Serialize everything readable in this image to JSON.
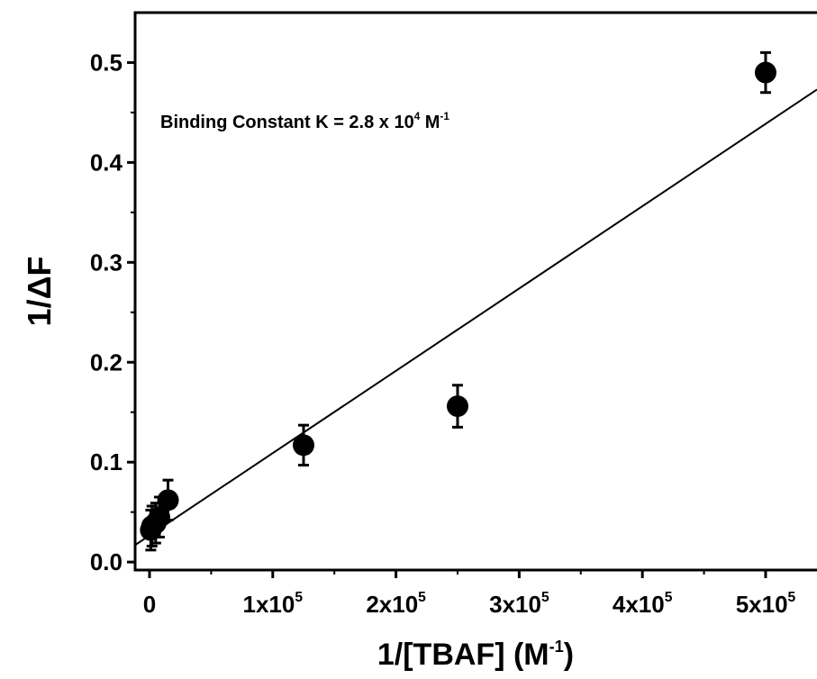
{
  "chart_data": {
    "type": "scatter",
    "xlabel": {
      "text": "1/[TBAF] (M",
      "sup": "-1",
      "tail": ")"
    },
    "ylabel": "1/ΔF",
    "annotation": {
      "text": "Binding Constant K = 2.8 x 10",
      "sup": "4",
      "mid": " M",
      "sup2": "-1"
    },
    "xlim": [
      -11700,
      541700
    ],
    "ylim": [
      -0.008,
      0.55
    ],
    "xticks": [
      0,
      {
        "value": 100000,
        "label": "1x10",
        "sup": "5"
      },
      {
        "value": 200000,
        "label": "2x10",
        "sup": "5"
      },
      {
        "value": 300000,
        "label": "3x10",
        "sup": "5"
      },
      {
        "value": 400000,
        "label": "4x10",
        "sup": "5"
      },
      {
        "value": 500000,
        "label": "5x10",
        "sup": "5"
      }
    ],
    "xminorticks": [
      50000,
      150000,
      250000,
      350000,
      450000
    ],
    "yticks": [
      {
        "value": 0,
        "label": "0.0"
      },
      0.1,
      0.2,
      0.3,
      0.4,
      0.5
    ],
    "yminorticks": [
      0.05,
      0.15,
      0.25,
      0.35,
      0.45
    ],
    "series": [
      {
        "color": "#000000",
        "x": [
          1000,
          2000,
          5000,
          8000,
          15000,
          125000,
          250000,
          500000
        ],
        "values": [
          0.032,
          0.036,
          0.039,
          0.045,
          0.062,
          0.117,
          0.156,
          0.49
        ],
        "errors": [
          0.02,
          0.02,
          0.02,
          0.02,
          0.02,
          0.02,
          0.021,
          0.02
        ]
      }
    ],
    "fit": {
      "color": "#000000",
      "x": [
        -11700,
        541700
      ],
      "values": [
        0.017,
        0.473
      ]
    }
  }
}
